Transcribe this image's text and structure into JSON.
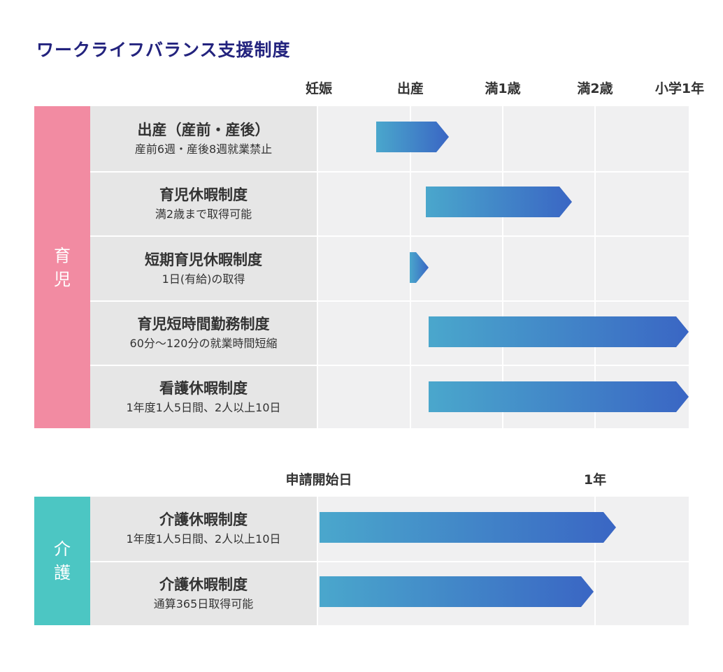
{
  "title": "ワークライフバランス支援制度",
  "childcare": {
    "tag_line1": "育",
    "tag_line2": "児",
    "tag_color": "#f28ba2",
    "axis": [
      "妊娠",
      "出産",
      "満1歳",
      "満2歳",
      "小学1年"
    ],
    "rows": [
      {
        "title": "出産（産前・産後）",
        "sub": "産前6週・産後8週就業禁止"
      },
      {
        "title": "育児休暇制度",
        "sub": "満2歳まで取得可能"
      },
      {
        "title": "短期育児休暇制度",
        "sub": "1日(有給)の取得"
      },
      {
        "title": "育児短時間勤務制度",
        "sub": "60分〜120分の就業時間短縮"
      },
      {
        "title": "看護休暇制度",
        "sub": "1年度1人5日間、2人以上10日"
      }
    ]
  },
  "nursing": {
    "tag_line1": "介",
    "tag_line2": "護",
    "tag_color": "#4cc6c3",
    "axis": [
      "申請開始日",
      "1年"
    ],
    "rows": [
      {
        "title": "介護休暇制度",
        "sub": "1年度1人5日間、2人以上10日"
      },
      {
        "title": "介護休暇制度",
        "sub": "通算365日取得可能"
      }
    ]
  },
  "colors": {
    "bar_start": "#4aa7cc",
    "bar_end": "#3a66c4",
    "title": "#23237e"
  }
}
